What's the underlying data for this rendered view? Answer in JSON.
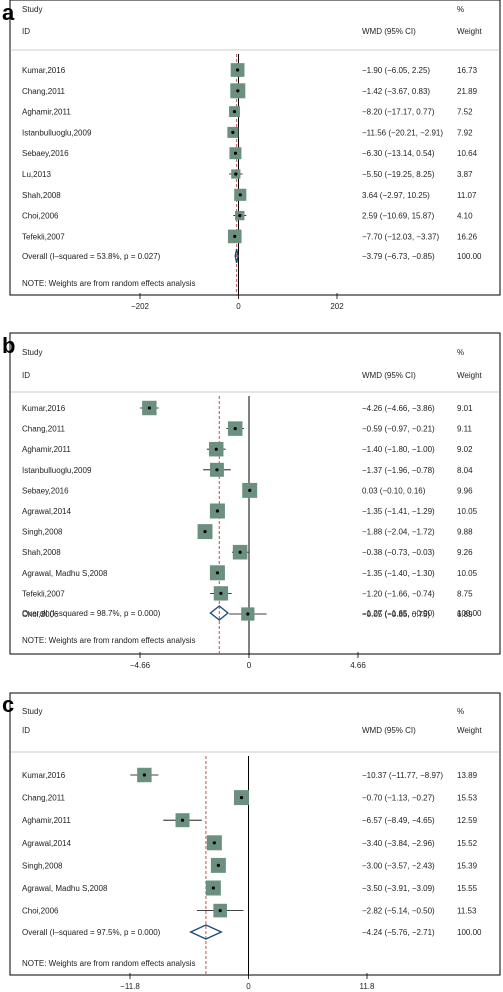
{
  "colors": {
    "box_fill": "#6b9080",
    "diamond_stroke": "#1f4e79",
    "overall_line": "#c0504d",
    "axis": "#000000",
    "frame": "#000000"
  },
  "chart_data": [
    {
      "type": "forest",
      "panel_label": "a",
      "header": {
        "study": "Study",
        "id": "ID",
        "effect": "WMD (95% CI)",
        "pct": "%",
        "weight": "Weight"
      },
      "xlim": [
        -202,
        202
      ],
      "xticks": [
        "-202",
        "0",
        "202"
      ],
      "studies": [
        {
          "label": "Kumar,2016",
          "est": -1.9,
          "lo": -6.05,
          "hi": 2.25,
          "ci_text": "−1.90 (−6.05, 2.25)",
          "weight": 16.73,
          "weight_text": "16.73"
        },
        {
          "label": "Chang,2011",
          "est": -1.42,
          "lo": -3.67,
          "hi": 0.83,
          "ci_text": "−1.42 (−3.67, 0.83)",
          "weight": 21.89,
          "weight_text": "21.89"
        },
        {
          "label": "Aghamir,2011",
          "est": -8.2,
          "lo": -17.17,
          "hi": 0.77,
          "ci_text": "−8.20 (−17.17, 0.77)",
          "weight": 7.52,
          "weight_text": "7.52"
        },
        {
          "label": "Istanbulluoglu,2009",
          "est": -11.56,
          "lo": -20.21,
          "hi": -2.91,
          "ci_text": "−11.56 (−20.21, −2.91)",
          "weight": 7.92,
          "weight_text": "7.92"
        },
        {
          "label": "Sebaey,2016",
          "est": -6.3,
          "lo": -13.14,
          "hi": 0.54,
          "ci_text": "−6.30 (−13.14, 0.54)",
          "weight": 10.64,
          "weight_text": "10.64"
        },
        {
          "label": "Lu,2013",
          "est": -5.5,
          "lo": -19.25,
          "hi": 8.25,
          "ci_text": "−5.50 (−19.25, 8.25)",
          "weight": 3.87,
          "weight_text": "3.87"
        },
        {
          "label": "Shah,2008",
          "est": 3.64,
          "lo": -2.97,
          "hi": 10.25,
          "ci_text": "3.64 (−2.97, 10.25)",
          "weight": 11.07,
          "weight_text": "11.07"
        },
        {
          "label": "Choi,2006",
          "est": 2.59,
          "lo": -10.69,
          "hi": 15.87,
          "ci_text": "2.59 (−10.69, 15.87)",
          "weight": 4.1,
          "weight_text": "4.10"
        },
        {
          "label": "Tefekli,2007",
          "est": -7.7,
          "lo": -12.03,
          "hi": -3.37,
          "ci_text": "−7.70 (−12.03, −3.37)",
          "weight": 16.26,
          "weight_text": "16.26"
        }
      ],
      "overall": {
        "label": "Overall  (I–squared = 53.8%, p = 0.027)",
        "est": -3.79,
        "lo": -6.73,
        "hi": -0.85,
        "ci_text": "−3.79 (−6.73, −0.85)",
        "weight_text": "100.00"
      },
      "note": "NOTE: Weights are from random effects analysis"
    },
    {
      "type": "forest",
      "panel_label": "b",
      "header": {
        "study": "Study",
        "id": "ID",
        "effect": "WMD (95% CI)",
        "pct": "%",
        "weight": "Weight"
      },
      "xlim": [
        -4.66,
        4.66
      ],
      "xticks": [
        "-4.66",
        "0",
        "4.66"
      ],
      "studies": [
        {
          "label": "Kumar,2016",
          "est": -4.26,
          "lo": -4.66,
          "hi": -3.86,
          "ci_text": "−4.26 (−4.66, −3.86)",
          "weight": 9.01,
          "weight_text": "9.01"
        },
        {
          "label": "Chang,2011",
          "est": -0.59,
          "lo": -0.97,
          "hi": -0.21,
          "ci_text": "−0.59 (−0.97, −0.21)",
          "weight": 9.11,
          "weight_text": "9.11"
        },
        {
          "label": "Aghamir,2011",
          "est": -1.4,
          "lo": -1.8,
          "hi": -1.0,
          "ci_text": "−1.40 (−1.80, −1.00)",
          "weight": 9.02,
          "weight_text": "9.02"
        },
        {
          "label": "Istanbulluoglu,2009",
          "est": -1.37,
          "lo": -1.96,
          "hi": -0.78,
          "ci_text": "−1.37 (−1.96, −0.78)",
          "weight": 8.04,
          "weight_text": "8.04"
        },
        {
          "label": "Sebaey,2016",
          "est": 0.03,
          "lo": -0.1,
          "hi": 0.16,
          "ci_text": "0.03 (−0.10, 0.16)",
          "weight": 9.96,
          "weight_text": "9.96"
        },
        {
          "label": "Agrawal,2014",
          "est": -1.35,
          "lo": -1.41,
          "hi": -1.29,
          "ci_text": "−1.35 (−1.41, −1.29)",
          "weight": 10.05,
          "weight_text": "10.05"
        },
        {
          "label": "Singh,2008",
          "est": -1.88,
          "lo": -2.04,
          "hi": -1.72,
          "ci_text": "−1.88 (−2.04, −1.72)",
          "weight": 9.88,
          "weight_text": "9.88"
        },
        {
          "label": "Shah,2008",
          "est": -0.38,
          "lo": -0.73,
          "hi": -0.03,
          "ci_text": "−0.38 (−0.73, −0.03)",
          "weight": 9.26,
          "weight_text": "9.26"
        },
        {
          "label": "Agrawal, Madhu S,2008",
          "est": -1.35,
          "lo": -1.4,
          "hi": -1.3,
          "ci_text": "−1.35 (−1.40, −1.30)",
          "weight": 10.05,
          "weight_text": "10.05"
        },
        {
          "label": "Tefekli,2007",
          "est": -1.2,
          "lo": -1.66,
          "hi": -0.74,
          "ci_text": "−1.20 (−1.66, −0.74)",
          "weight": 8.75,
          "weight_text": "8.75"
        },
        {
          "label": "Choi,2006",
          "est": -0.05,
          "lo": -0.85,
          "hi": 0.75,
          "ci_text": "−0.05 (−0.85, 0.75)",
          "weight": 6.89,
          "weight_text": "6.89"
        }
      ],
      "overall": {
        "label": "Overall  (I–squared = 98.7%, p = 0.000)",
        "est": -1.27,
        "lo": -1.65,
        "hi": -0.9,
        "ci_text": "−1.27 (−1.65, −0.90)",
        "weight_text": "100.00"
      },
      "note": "NOTE: Weights are from random effects analysis"
    },
    {
      "type": "forest",
      "panel_label": "c",
      "header": {
        "study": "Study",
        "id": "ID",
        "effect": "WMD (95% CI)",
        "pct": "%",
        "weight": "Weight"
      },
      "xlim": [
        -11.8,
        11.8
      ],
      "xticks": [
        "-11.8",
        "0",
        "11.8"
      ],
      "studies": [
        {
          "label": "Kumar,2016",
          "est": -10.37,
          "lo": -11.77,
          "hi": -8.97,
          "ci_text": "−10.37 (−11.77, −8.97)",
          "weight": 13.89,
          "weight_text": "13.89"
        },
        {
          "label": "Chang,2011",
          "est": -0.7,
          "lo": -1.13,
          "hi": -0.27,
          "ci_text": "−0.70 (−1.13, −0.27)",
          "weight": 15.53,
          "weight_text": "15.53"
        },
        {
          "label": "Aghamir,2011",
          "est": -6.57,
          "lo": -8.49,
          "hi": -4.65,
          "ci_text": "−6.57 (−8.49, −4.65)",
          "weight": 12.59,
          "weight_text": "12.59"
        },
        {
          "label": "Agrawal,2014",
          "est": -3.4,
          "lo": -3.84,
          "hi": -2.96,
          "ci_text": "−3.40 (−3.84, −2.96)",
          "weight": 15.52,
          "weight_text": "15.52"
        },
        {
          "label": "Singh,2008",
          "est": -3.0,
          "lo": -3.57,
          "hi": -2.43,
          "ci_text": "−3.00 (−3.57, −2.43)",
          "weight": 15.39,
          "weight_text": "15.39"
        },
        {
          "label": "Agrawal, Madhu S,2008",
          "est": -3.5,
          "lo": -3.91,
          "hi": -3.09,
          "ci_text": "−3.50 (−3.91, −3.09)",
          "weight": 15.55,
          "weight_text": "15.55"
        },
        {
          "label": "Choi,2006",
          "est": -2.82,
          "lo": -5.14,
          "hi": -0.5,
          "ci_text": "−2.82 (−5.14, −0.50)",
          "weight": 11.53,
          "weight_text": "11.53"
        }
      ],
      "overall": {
        "label": "Overall  (I–squared = 97.5%, p = 0.000)",
        "est": -4.24,
        "lo": -5.76,
        "hi": -2.71,
        "ci_text": "−4.24 (−5.76, −2.71)",
        "weight_text": "100.00"
      },
      "note": "NOTE: Weights are from random effects analysis"
    }
  ]
}
